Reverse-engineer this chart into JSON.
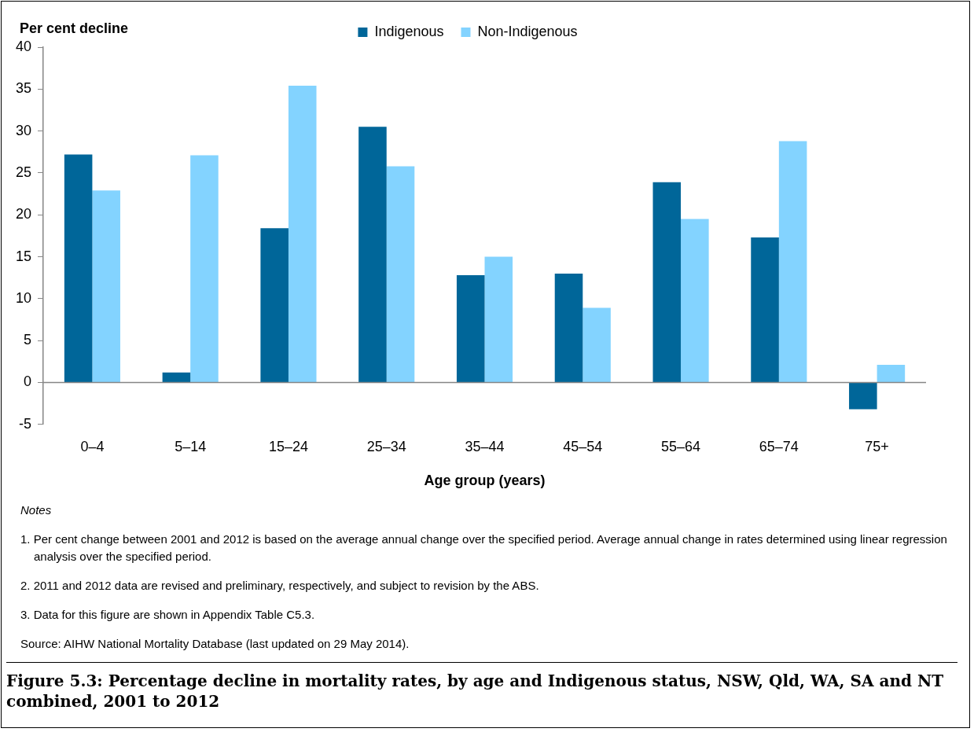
{
  "chart_data": {
    "type": "bar",
    "title": "Figure 5.3: Percentage decline in mortality rates, by age and Indigenous status, NSW, Qld, WA, SA and NT combined, 2001 to 2012",
    "ylabel": "Per cent decline",
    "xlabel": "Age group (years)",
    "categories": [
      "0–4",
      "5–14",
      "15–24",
      "25–34",
      "35–44",
      "45–54",
      "55–64",
      "65–74",
      "75+"
    ],
    "series": [
      {
        "name": "Indigenous",
        "color": "#006699",
        "values": [
          27.2,
          1.2,
          18.4,
          30.5,
          12.8,
          13.0,
          23.9,
          17.3,
          -3.2
        ]
      },
      {
        "name": "Non-Indigenous",
        "color": "#83d3ff",
        "values": [
          22.9,
          27.1,
          35.4,
          25.8,
          15.0,
          8.9,
          19.5,
          28.8,
          2.1
        ]
      }
    ],
    "ylim": [
      -5,
      40
    ],
    "yticks": [
      -5,
      0,
      5,
      10,
      15,
      20,
      25,
      30,
      35,
      40
    ],
    "legend": "top",
    "annotations": [
      "Notes",
      "1.   Per cent change between 2001 and 2012 is based on the average annual change over the specified period. Average annual change in rates determined using linear regression analysis over the specified period.",
      "2.   2011 and 2012 data are revised and preliminary, respectively, and subject to revision by the ABS.",
      "3.   Data for this figure are shown in Appendix Table C5.3.",
      "Source: AIHW National Mortality Database (last updated on 29 May 2014)."
    ]
  }
}
